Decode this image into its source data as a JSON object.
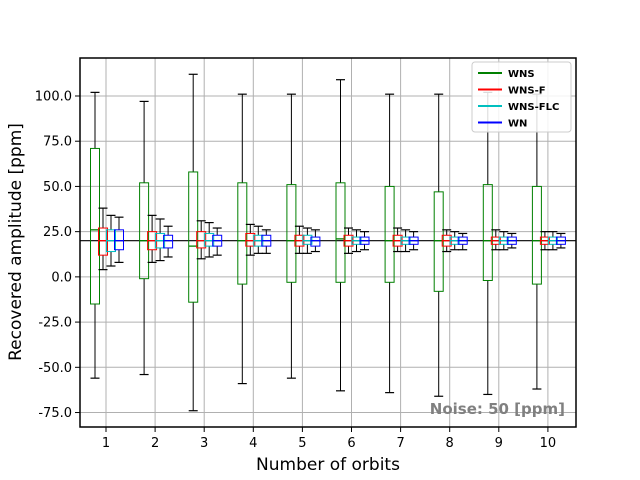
{
  "chart_data": {
    "type": "boxplot",
    "xlabel": "Number of orbits",
    "ylabel": "Recovered amplitude [ppm]",
    "annotation": "Noise: 50 [ppm]",
    "ylim": [
      -83,
      121
    ],
    "xlim": [
      0.5,
      10.5
    ],
    "yticks": [
      "-75.0",
      "-50.0",
      "-25.0",
      "0.0",
      "25.0",
      "50.0",
      "75.0",
      "100.0"
    ],
    "categories": [
      "1",
      "2",
      "3",
      "4",
      "5",
      "6",
      "7",
      "8",
      "9",
      "10"
    ],
    "reference_line": 20,
    "grid": true,
    "legend_position": "top-right",
    "series": [
      {
        "name": "WNS",
        "color": "#008000",
        "boxes": [
          {
            "whislo": -56,
            "q1": -15,
            "med": 26,
            "q3": 71,
            "whishi": 102
          },
          {
            "whislo": -54,
            "q1": -1,
            "med": 20,
            "q3": 52,
            "whishi": 97
          },
          {
            "whislo": -74,
            "q1": -14,
            "med": 17,
            "q3": 58,
            "whishi": 112
          },
          {
            "whislo": -59,
            "q1": -4,
            "med": 20,
            "q3": 52,
            "whishi": 101
          },
          {
            "whislo": -56,
            "q1": -3,
            "med": 20,
            "q3": 51,
            "whishi": 101
          },
          {
            "whislo": -63,
            "q1": -3,
            "med": 21,
            "q3": 52,
            "whishi": 109
          },
          {
            "whislo": -64,
            "q1": -3,
            "med": 20,
            "q3": 50,
            "whishi": 101
          },
          {
            "whislo": -66,
            "q1": -8,
            "med": 20,
            "q3": 47,
            "whishi": 101
          },
          {
            "whislo": -65,
            "q1": -2,
            "med": 20,
            "q3": 51,
            "whishi": 102
          },
          {
            "whislo": -62,
            "q1": -4,
            "med": 20,
            "q3": 50,
            "whishi": 101
          }
        ]
      },
      {
        "name": "WNS-F",
        "color": "#ff0000",
        "boxes": [
          {
            "whislo": 4,
            "q1": 12,
            "med": 20,
            "q3": 27,
            "whishi": 38
          },
          {
            "whislo": 8,
            "q1": 15,
            "med": 20,
            "q3": 25,
            "whishi": 34
          },
          {
            "whislo": 10,
            "q1": 16,
            "med": 20,
            "q3": 25,
            "whishi": 31
          },
          {
            "whislo": 12,
            "q1": 17,
            "med": 20,
            "q3": 24,
            "whishi": 29
          },
          {
            "whislo": 13,
            "q1": 17,
            "med": 20,
            "q3": 23,
            "whishi": 28
          },
          {
            "whislo": 13,
            "q1": 17,
            "med": 20,
            "q3": 23,
            "whishi": 27
          },
          {
            "whislo": 14,
            "q1": 17,
            "med": 20,
            "q3": 23,
            "whishi": 27
          },
          {
            "whislo": 14,
            "q1": 17,
            "med": 20,
            "q3": 23,
            "whishi": 26
          },
          {
            "whislo": 15,
            "q1": 18,
            "med": 20,
            "q3": 22,
            "whishi": 26
          },
          {
            "whislo": 15,
            "q1": 18,
            "med": 20,
            "q3": 22,
            "whishi": 25
          }
        ]
      },
      {
        "name": "WNS-FLC",
        "color": "#00bfbf",
        "boxes": [
          {
            "whislo": 6,
            "q1": 14,
            "med": 20,
            "q3": 26,
            "whishi": 34
          },
          {
            "whislo": 9,
            "q1": 16,
            "med": 20,
            "q3": 24,
            "whishi": 32
          },
          {
            "whislo": 11,
            "q1": 17,
            "med": 20,
            "q3": 24,
            "whishi": 30
          },
          {
            "whislo": 13,
            "q1": 17,
            "med": 20,
            "q3": 23,
            "whishi": 28
          },
          {
            "whislo": 13,
            "q1": 18,
            "med": 20,
            "q3": 23,
            "whishi": 27
          },
          {
            "whislo": 14,
            "q1": 18,
            "med": 20,
            "q3": 22,
            "whishi": 26
          },
          {
            "whislo": 14,
            "q1": 18,
            "med": 20,
            "q3": 22,
            "whishi": 26
          },
          {
            "whislo": 15,
            "q1": 18,
            "med": 20,
            "q3": 22,
            "whishi": 25
          },
          {
            "whislo": 15,
            "q1": 18,
            "med": 20,
            "q3": 22,
            "whishi": 25
          },
          {
            "whislo": 15,
            "q1": 18,
            "med": 20,
            "q3": 22,
            "whishi": 25
          }
        ]
      },
      {
        "name": "WN",
        "color": "#0000ff",
        "boxes": [
          {
            "whislo": 8,
            "q1": 15,
            "med": 20,
            "q3": 26,
            "whishi": 33
          },
          {
            "whislo": 11,
            "q1": 16,
            "med": 20,
            "q3": 23,
            "whishi": 28
          },
          {
            "whislo": 12,
            "q1": 17,
            "med": 20,
            "q3": 23,
            "whishi": 27
          },
          {
            "whislo": 13,
            "q1": 17,
            "med": 20,
            "q3": 23,
            "whishi": 26
          },
          {
            "whislo": 14,
            "q1": 17,
            "med": 20,
            "q3": 22,
            "whishi": 26
          },
          {
            "whislo": 15,
            "q1": 18,
            "med": 20,
            "q3": 22,
            "whishi": 25
          },
          {
            "whislo": 15,
            "q1": 18,
            "med": 20,
            "q3": 22,
            "whishi": 25
          },
          {
            "whislo": 15,
            "q1": 18,
            "med": 20,
            "q3": 22,
            "whishi": 24
          },
          {
            "whislo": 16,
            "q1": 18,
            "med": 20,
            "q3": 22,
            "whishi": 24
          },
          {
            "whislo": 16,
            "q1": 18,
            "med": 20,
            "q3": 22,
            "whishi": 24
          }
        ]
      }
    ]
  }
}
